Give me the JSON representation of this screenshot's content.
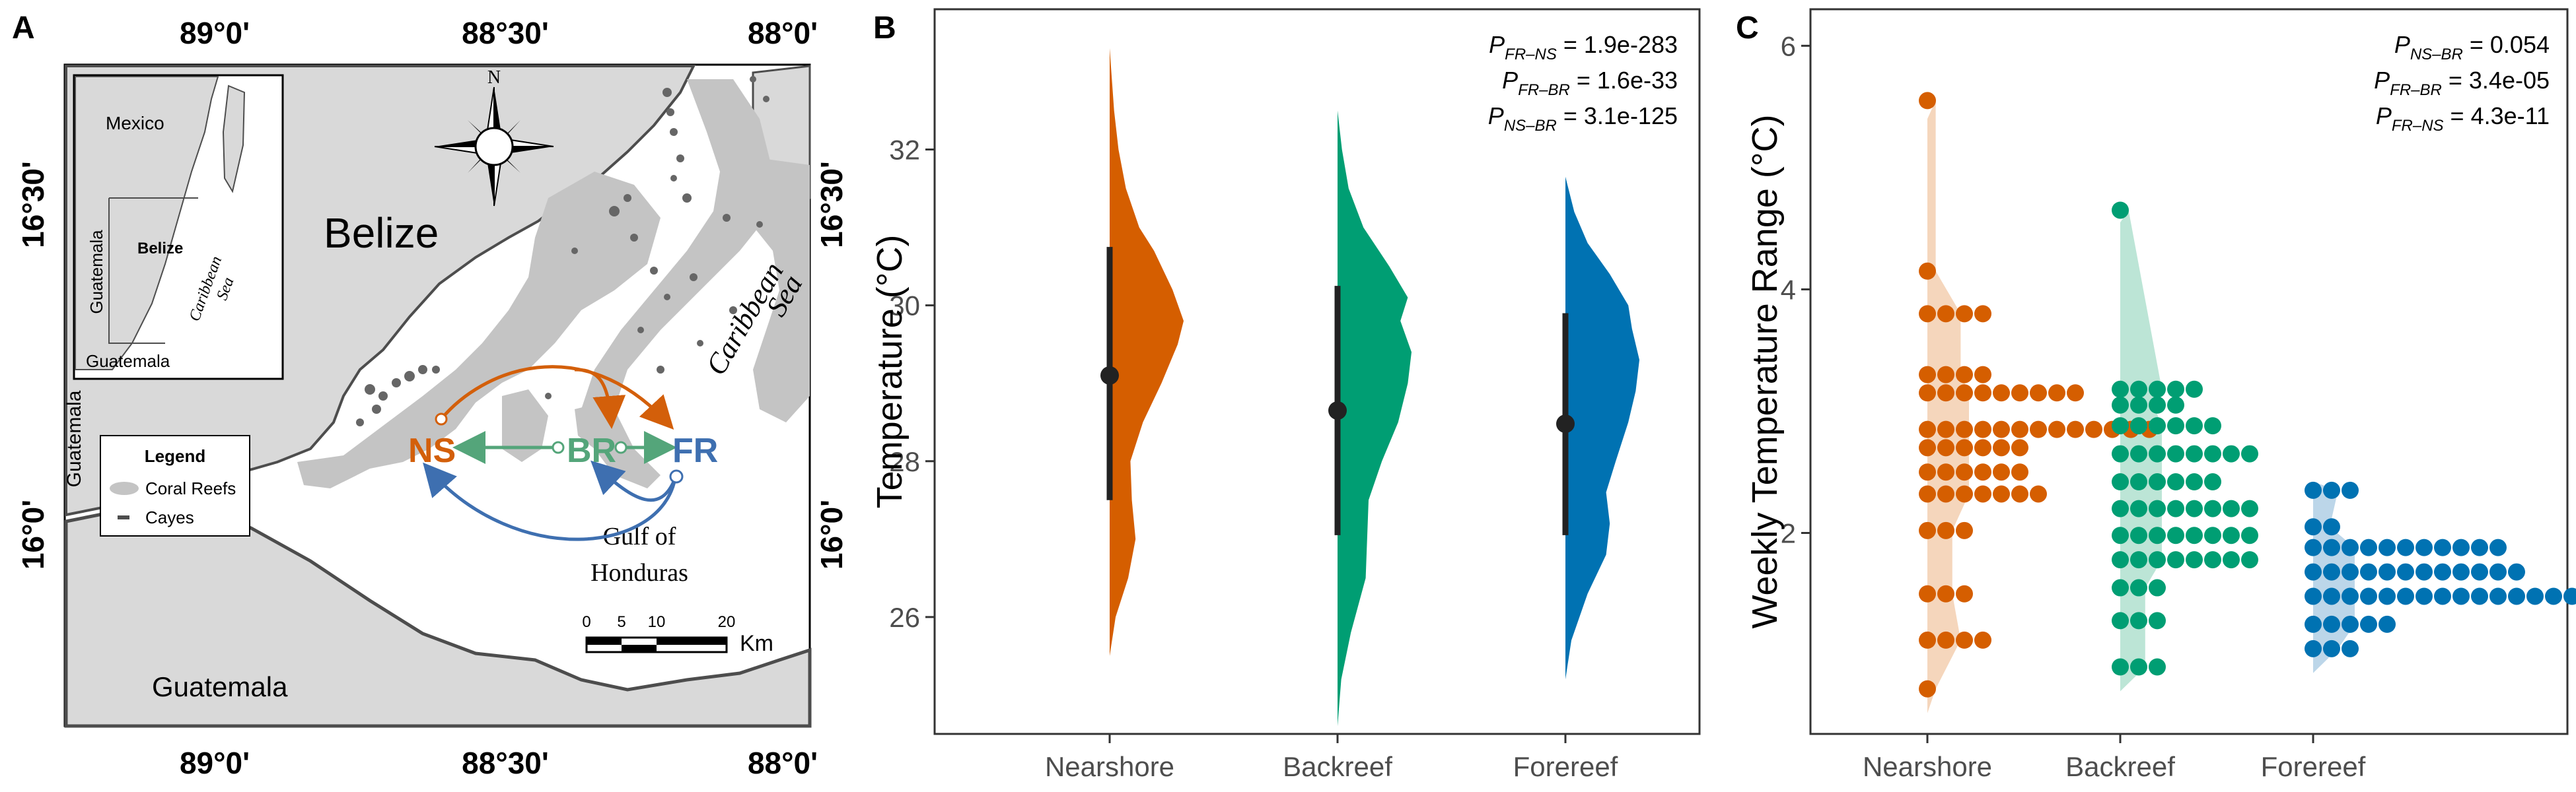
{
  "panels": {
    "a": "A",
    "b": "B",
    "c": "C"
  },
  "map": {
    "top_coords": [
      "89°0'",
      "88°30'",
      "88°0'"
    ],
    "bottom_coords": [
      "89°0'",
      "88°30'",
      "88°0'"
    ],
    "left_coords": [
      "16°30'",
      "16°0'"
    ],
    "right_coords": [
      "16°30'",
      "16°0'"
    ],
    "belize": "Belize",
    "guatemala_bottom": "Guatemala",
    "guatemala_left": "Guatemala",
    "caribbean_sea": [
      "Caribbean",
      "Sea"
    ],
    "gulf": [
      "Gulf of",
      "Honduras"
    ],
    "compass_n": "N",
    "sites": {
      "ns": "NS",
      "br": "BR",
      "fr": "FR"
    },
    "legend": {
      "title": "Legend",
      "items": [
        "Coral Reefs",
        "Cayes"
      ]
    },
    "inset": {
      "mexico": "Mexico",
      "belize": "Belize",
      "guatemala_side": "Guatemala",
      "guatemala_bottom": "Guatemala",
      "sea": [
        "Caribbean",
        "Sea"
      ]
    },
    "scale": {
      "ticks": [
        "0",
        "5",
        "10",
        "20"
      ],
      "unit": "Km"
    },
    "colors": {
      "land": "#d9d9d9",
      "reef_light": "#c8c8c8",
      "reef_dark": "#666666",
      "ns": "#d35f0a",
      "br": "#54a57a",
      "fr": "#3e6fb0"
    }
  },
  "pvalues_b": [
    {
      "p": "P",
      "sub": "FR–NS",
      "val": " = 1.9e-283"
    },
    {
      "p": "P",
      "sub": "FR–BR",
      "val": " = 1.6e-33"
    },
    {
      "p": "P",
      "sub": "NS–BR",
      "val": " = 3.1e-125"
    }
  ],
  "pvalues_c": [
    {
      "p": "P",
      "sub": "NS–BR",
      "val": " = 0.054"
    },
    {
      "p": "P",
      "sub": "FR–BR",
      "val": " = 3.4e-05"
    },
    {
      "p": "P",
      "sub": "FR–NS",
      "val": " = 4.3e-11"
    }
  ],
  "chart_data": [
    {
      "type": "violin",
      "panel": "B",
      "ylabel": "Temperature (°C)",
      "xlabel": "",
      "categories": [
        "Nearshore",
        "Backreef",
        "Forereef"
      ],
      "ylim": [
        24.5,
        33.8
      ],
      "yticks": [
        26,
        28,
        30,
        32
      ],
      "colors": [
        "#d55e00",
        "#009e73",
        "#0072b2"
      ],
      "series": [
        {
          "name": "Nearshore",
          "min": 25.5,
          "max": 33.3,
          "mean": 29.1,
          "sd_low": 27.5,
          "sd_high": 30.75,
          "density": [
            [
              25.5,
              0.0
            ],
            [
              26.0,
              0.08
            ],
            [
              26.5,
              0.25
            ],
            [
              27.0,
              0.35
            ],
            [
              27.5,
              0.3
            ],
            [
              28.0,
              0.28
            ],
            [
              28.5,
              0.45
            ],
            [
              29.0,
              0.7
            ],
            [
              29.5,
              0.92
            ],
            [
              29.8,
              1.0
            ],
            [
              30.2,
              0.85
            ],
            [
              30.7,
              0.6
            ],
            [
              31.0,
              0.4
            ],
            [
              31.5,
              0.22
            ],
            [
              32.0,
              0.12
            ],
            [
              32.5,
              0.06
            ],
            [
              33.3,
              0.0
            ]
          ]
        },
        {
          "name": "Backreef",
          "min": 24.6,
          "max": 32.5,
          "mean": 28.65,
          "sd_low": 27.05,
          "sd_high": 30.25,
          "density": [
            [
              24.6,
              0.0
            ],
            [
              25.2,
              0.05
            ],
            [
              25.8,
              0.18
            ],
            [
              26.5,
              0.38
            ],
            [
              27.0,
              0.4
            ],
            [
              27.5,
              0.42
            ],
            [
              28.0,
              0.6
            ],
            [
              28.5,
              0.82
            ],
            [
              29.0,
              0.95
            ],
            [
              29.4,
              1.0
            ],
            [
              29.8,
              0.85
            ],
            [
              30.1,
              0.95
            ],
            [
              30.5,
              0.7
            ],
            [
              31.0,
              0.35
            ],
            [
              31.5,
              0.15
            ],
            [
              32.0,
              0.06
            ],
            [
              32.5,
              0.0
            ]
          ]
        },
        {
          "name": "Forereef",
          "min": 25.2,
          "max": 31.65,
          "mean": 28.48,
          "sd_low": 27.05,
          "sd_high": 29.9,
          "density": [
            [
              25.2,
              0.0
            ],
            [
              25.7,
              0.08
            ],
            [
              26.3,
              0.3
            ],
            [
              26.8,
              0.55
            ],
            [
              27.2,
              0.6
            ],
            [
              27.6,
              0.55
            ],
            [
              28.0,
              0.68
            ],
            [
              28.5,
              0.85
            ],
            [
              28.9,
              0.95
            ],
            [
              29.3,
              1.0
            ],
            [
              29.7,
              0.9
            ],
            [
              30.0,
              0.85
            ],
            [
              30.4,
              0.6
            ],
            [
              30.8,
              0.3
            ],
            [
              31.2,
              0.12
            ],
            [
              31.65,
              0.0
            ]
          ]
        }
      ]
    },
    {
      "type": "scatter",
      "panel": "C",
      "ylabel": "Weekly Temperature Range (°C)",
      "xlabel": "",
      "categories": [
        "Nearshore",
        "Backreef",
        "Forereef"
      ],
      "ylim": [
        0.35,
        6.3
      ],
      "yticks": [
        2,
        4,
        6
      ],
      "colors": [
        "#d55e00",
        "#009e73",
        "#0072b2"
      ],
      "series": [
        {
          "name": "Nearshore",
          "rows": [
            [
              5.55,
              1
            ],
            [
              4.15,
              1
            ],
            [
              3.8,
              4
            ],
            [
              3.3,
              4
            ],
            [
              3.15,
              9
            ],
            [
              2.85,
              13
            ],
            [
              2.7,
              6
            ],
            [
              2.5,
              6
            ],
            [
              2.32,
              7
            ],
            [
              2.02,
              3
            ],
            [
              1.5,
              3
            ],
            [
              1.12,
              4
            ],
            [
              0.72,
              1
            ]
          ],
          "density_max_y": 5.4
        },
        {
          "name": "Backreef",
          "rows": [
            [
              4.65,
              1
            ],
            [
              3.18,
              5
            ],
            [
              3.05,
              4
            ],
            [
              2.88,
              6
            ],
            [
              2.65,
              8
            ],
            [
              2.42,
              6
            ],
            [
              2.2,
              8
            ],
            [
              1.98,
              8
            ],
            [
              1.78,
              8
            ],
            [
              1.55,
              3
            ],
            [
              1.28,
              3
            ],
            [
              0.9,
              3
            ]
          ],
          "density_max_y": 4.55
        },
        {
          "name": "Forereef",
          "rows": [
            [
              2.35,
              3
            ],
            [
              2.05,
              2
            ],
            [
              1.88,
              11
            ],
            [
              1.68,
              12
            ],
            [
              1.48,
              15
            ],
            [
              1.25,
              5
            ],
            [
              1.05,
              3
            ]
          ],
          "density_max_y": 2.42
        }
      ]
    }
  ]
}
